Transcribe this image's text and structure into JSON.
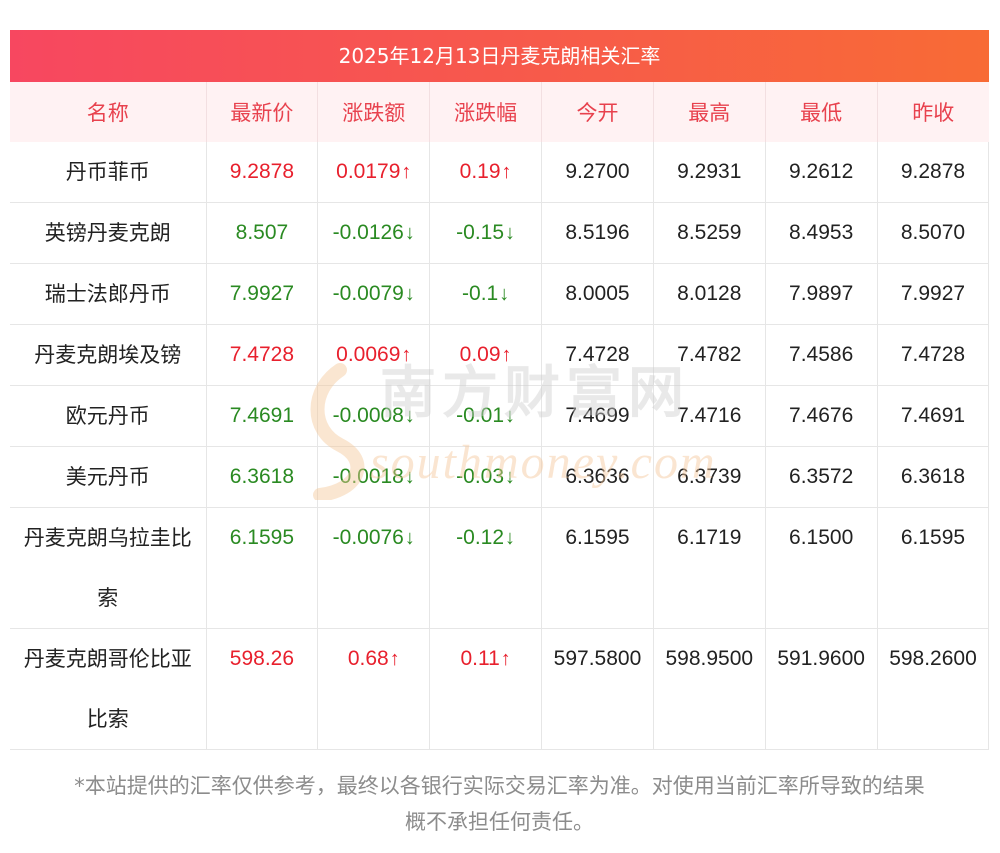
{
  "title": "2025年12月13日丹麦克朗相关汇率",
  "headers": [
    "名称",
    "最新价",
    "涨跌额",
    "涨跌幅",
    "今开",
    "最高",
    "最低",
    "昨收"
  ],
  "rows": [
    {
      "name": "丹币菲币",
      "latest": "9.2878",
      "change": "0.0179",
      "change_pct": "0.19",
      "open": "9.2700",
      "high": "9.2931",
      "low": "9.2612",
      "prev_close": "9.2878",
      "direction": "up"
    },
    {
      "name": "英镑丹麦克朗",
      "latest": "8.507",
      "change": "-0.0126",
      "change_pct": "-0.15",
      "open": "8.5196",
      "high": "8.5259",
      "low": "8.4953",
      "prev_close": "8.5070",
      "direction": "down"
    },
    {
      "name": "瑞士法郎丹币",
      "latest": "7.9927",
      "change": "-0.0079",
      "change_pct": "-0.1",
      "open": "8.0005",
      "high": "8.0128",
      "low": "7.9897",
      "prev_close": "7.9927",
      "direction": "down"
    },
    {
      "name": "丹麦克朗埃及镑",
      "latest": "7.4728",
      "change": "0.0069",
      "change_pct": "0.09",
      "open": "7.4728",
      "high": "7.4782",
      "low": "7.4586",
      "prev_close": "7.4728",
      "direction": "up"
    },
    {
      "name": "欧元丹币",
      "latest": "7.4691",
      "change": "-0.0008",
      "change_pct": "-0.01",
      "open": "7.4699",
      "high": "7.4716",
      "low": "7.4676",
      "prev_close": "7.4691",
      "direction": "down"
    },
    {
      "name": "美元丹币",
      "latest": "6.3618",
      "change": "-0.0018",
      "change_pct": "-0.03",
      "open": "6.3636",
      "high": "6.3739",
      "low": "6.3572",
      "prev_close": "6.3618",
      "direction": "down"
    },
    {
      "name_lines": [
        "丹麦克朗乌拉圭比",
        "索"
      ],
      "latest": "6.1595",
      "change": "-0.0076",
      "change_pct": "-0.12",
      "open": "6.1595",
      "high": "6.1719",
      "low": "6.1500",
      "prev_close": "6.1595",
      "direction": "down"
    },
    {
      "name_lines": [
        "丹麦克朗哥伦比亚",
        "比索"
      ],
      "latest": "598.26",
      "change": "0.68",
      "change_pct": "0.11",
      "open": "597.5800",
      "high": "598.9500",
      "low": "591.9600",
      "prev_close": "598.2600",
      "direction": "up"
    }
  ],
  "arrows": {
    "up": "↑",
    "down": "↓"
  },
  "watermark": {
    "cn": "南方财富网",
    "en": "southmoney.com"
  },
  "disclaimer": [
    "*本站提供的汇率仅供参考，最终以各银行实际交易汇率为准。对使用当前汇率所导致的结果",
    "概不承担任何责任。"
  ],
  "colors": {
    "up": "#e8202d",
    "down": "#2a8a22",
    "header_text": "#e8424e",
    "header_bg": "#fff2f3",
    "title_gradient_start": "#f74760",
    "title_gradient_end": "#f86b35"
  }
}
